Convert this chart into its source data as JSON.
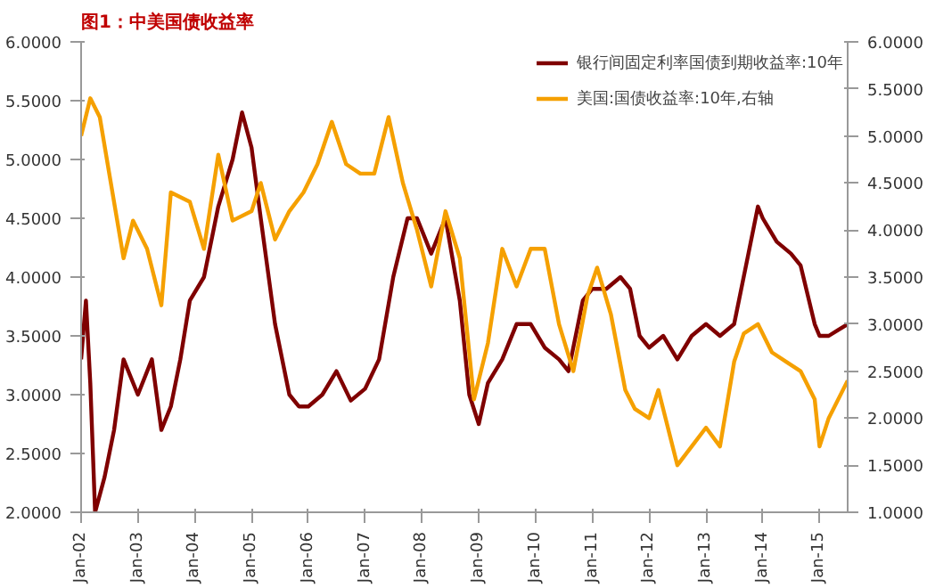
{
  "chart_data": {
    "type": "line",
    "title": "图1：中美国债收益率",
    "legend": "top right",
    "grid": false,
    "xlim": [
      "2002-01",
      "2015-07"
    ],
    "xticks": [
      {
        "value": "2002-01",
        "label": "Jan-02"
      },
      {
        "value": "2003-01",
        "label": "Jan-03"
      },
      {
        "value": "2004-01",
        "label": "Jan-04"
      },
      {
        "value": "2005-01",
        "label": "Jan-05"
      },
      {
        "value": "2006-01",
        "label": "Jan-06"
      },
      {
        "value": "2007-01",
        "label": "Jan-07"
      },
      {
        "value": "2008-01",
        "label": "Jan-08"
      },
      {
        "value": "2009-01",
        "label": "Jan-09"
      },
      {
        "value": "2010-01",
        "label": "Jan-10"
      },
      {
        "value": "2011-01",
        "label": "Jan-11"
      },
      {
        "value": "2012-01",
        "label": "Jan-12"
      },
      {
        "value": "2013-01",
        "label": "Jan-13"
      },
      {
        "value": "2014-01",
        "label": "Jan-14"
      },
      {
        "value": "2015-01",
        "label": "Jan-15"
      }
    ],
    "ylim": [
      2,
      6
    ],
    "yticks": [
      {
        "value": 2,
        "label": "2.0000"
      },
      {
        "value": 2.5,
        "label": "2.5000"
      },
      {
        "value": 3,
        "label": "3.0000"
      },
      {
        "value": 3.5,
        "label": "3.5000"
      },
      {
        "value": 4,
        "label": "4.0000"
      },
      {
        "value": 4.5,
        "label": "4.5000"
      },
      {
        "value": 5,
        "label": "5.0000"
      },
      {
        "value": 5.5,
        "label": "5.5000"
      },
      {
        "value": 6,
        "label": "6.0000"
      }
    ],
    "y2lim": [
      1,
      6
    ],
    "y2ticks": [
      {
        "value": 1,
        "label": "1.0000"
      },
      {
        "value": 1.5,
        "label": "1.5000"
      },
      {
        "value": 2,
        "label": "2.0000"
      },
      {
        "value": 2.5,
        "label": "2.5000"
      },
      {
        "value": 3,
        "label": "3.0000"
      },
      {
        "value": 3.5,
        "label": "3.5000"
      },
      {
        "value": 4,
        "label": "4.0000"
      },
      {
        "value": 4.5,
        "label": "4.5000"
      },
      {
        "value": 5,
        "label": "5.0000"
      },
      {
        "value": 5.5,
        "label": "5.5000"
      },
      {
        "value": 6,
        "label": "6.0000"
      }
    ],
    "series": [
      {
        "name": "银行间固定利率国债到期收益率:10年",
        "color": "#7f0000",
        "x": [
          "2002-01",
          "2002-02",
          "2002-03",
          "2002-04",
          "2002-06",
          "2002-08",
          "2002-10",
          "2003-01",
          "2003-04",
          "2003-06",
          "2003-08",
          "2003-10",
          "2003-12",
          "2004-03",
          "2004-06",
          "2004-09",
          "2004-11",
          "2005-01",
          "2005-03",
          "2005-06",
          "2005-09",
          "2005-11",
          "2006-01",
          "2006-04",
          "2006-07",
          "2006-10",
          "2007-01",
          "2007-04",
          "2007-07",
          "2007-10",
          "2007-12",
          "2008-03",
          "2008-06",
          "2008-09",
          "2008-11",
          "2009-01",
          "2009-03",
          "2009-06",
          "2009-09",
          "2009-12",
          "2010-03",
          "2010-06",
          "2010-08",
          "2010-11",
          "2011-01",
          "2011-04",
          "2011-07",
          "2011-09",
          "2011-11",
          "2012-01",
          "2012-04",
          "2012-07",
          "2012-10",
          "2013-01",
          "2013-04",
          "2013-07",
          "2013-10",
          "2013-12",
          "2014-01",
          "2014-04",
          "2014-07",
          "2014-09",
          "2014-12",
          "2015-01",
          "2015-03",
          "2015-05",
          "2015-07"
        ],
        "values": [
          3.3,
          3.8,
          3.1,
          2.0,
          2.3,
          2.7,
          3.3,
          3.0,
          3.3,
          2.7,
          2.9,
          3.3,
          3.8,
          4.0,
          4.6,
          5.0,
          5.4,
          5.1,
          4.5,
          3.6,
          3.0,
          2.9,
          2.9,
          3.0,
          3.2,
          2.95,
          3.05,
          3.3,
          4.0,
          4.5,
          4.5,
          4.2,
          4.5,
          3.8,
          3.0,
          2.75,
          3.1,
          3.3,
          3.6,
          3.6,
          3.4,
          3.3,
          3.2,
          3.8,
          3.9,
          3.9,
          4.0,
          3.9,
          3.5,
          3.4,
          3.5,
          3.3,
          3.5,
          3.6,
          3.5,
          3.6,
          4.2,
          4.6,
          4.5,
          4.3,
          4.2,
          4.1,
          3.6,
          3.5,
          3.5,
          3.55,
          3.6
        ]
      },
      {
        "name": "美国:国债收益率:10年,右轴",
        "color": "#f5a000",
        "axis": "y2",
        "x": [
          "2002-01",
          "2002-03",
          "2002-05",
          "2002-07",
          "2002-10",
          "2002-12",
          "2003-03",
          "2003-06",
          "2003-08",
          "2003-12",
          "2004-03",
          "2004-06",
          "2004-09",
          "2005-01",
          "2005-03",
          "2005-06",
          "2005-09",
          "2005-12",
          "2006-03",
          "2006-06",
          "2006-09",
          "2006-12",
          "2007-03",
          "2007-06",
          "2007-09",
          "2007-12",
          "2008-03",
          "2008-06",
          "2008-09",
          "2008-12",
          "2009-03",
          "2009-06",
          "2009-09",
          "2009-12",
          "2010-03",
          "2010-06",
          "2010-09",
          "2010-12",
          "2011-02",
          "2011-05",
          "2011-08",
          "2011-10",
          "2012-01",
          "2012-03",
          "2012-07",
          "2012-10",
          "2013-01",
          "2013-04",
          "2013-07",
          "2013-09",
          "2013-12",
          "2014-03",
          "2014-06",
          "2014-09",
          "2014-12",
          "2015-01",
          "2015-03",
          "2015-07"
        ],
        "values": [
          5.0,
          5.4,
          5.2,
          4.6,
          3.7,
          4.1,
          3.8,
          3.2,
          4.4,
          4.3,
          3.8,
          4.8,
          4.1,
          4.2,
          4.5,
          3.9,
          4.2,
          4.4,
          4.7,
          5.15,
          4.7,
          4.6,
          4.6,
          5.2,
          4.5,
          4.0,
          3.4,
          4.2,
          3.7,
          2.2,
          2.8,
          3.8,
          3.4,
          3.8,
          3.8,
          3.0,
          2.5,
          3.3,
          3.6,
          3.1,
          2.3,
          2.1,
          2.0,
          2.3,
          1.5,
          1.7,
          1.9,
          1.7,
          2.6,
          2.9,
          3.0,
          2.7,
          2.6,
          2.5,
          2.2,
          1.7,
          2.0,
          2.4
        ]
      }
    ]
  }
}
